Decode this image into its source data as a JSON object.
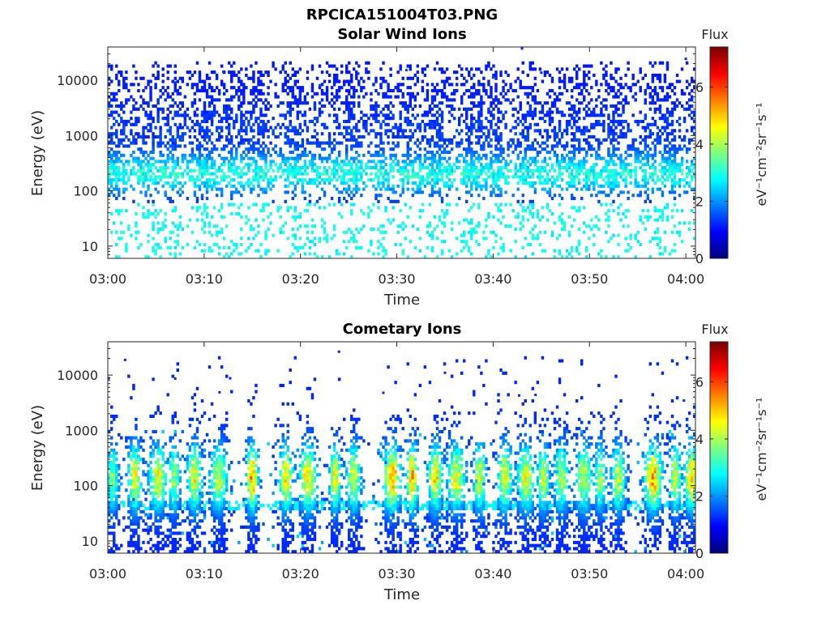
{
  "figure": {
    "title": "RPCICA151004T03.PNG"
  },
  "colorbar": {
    "title": "Flux",
    "label": "eV⁻¹cm⁻²sr⁻¹s⁻¹",
    "ticks": [
      "0",
      "2",
      "4",
      "6"
    ],
    "range": [
      0,
      7.4
    ],
    "colormap": "jet"
  },
  "chart_data": [
    {
      "type": "heatmap",
      "title": "Solar Wind Ions",
      "xlabel": "Time",
      "ylabel": "Energy (eV)",
      "xticks": [
        "03:00",
        "03:10",
        "03:20",
        "03:30",
        "03:40",
        "03:50",
        "04:00"
      ],
      "yticks": [
        "10",
        "100",
        "1000",
        "10000"
      ],
      "xlim": [
        "03:00",
        "04:01"
      ],
      "ylim": [
        6,
        40000
      ],
      "yscale": "log",
      "z_range": [
        0,
        7.4
      ],
      "band_energy_eV": [
        100,
        400
      ],
      "band_flux_peak": 3.0,
      "background_flux": 1.5,
      "sparse_events_eV": [
        [
          5,
          10500,
          1.1
        ],
        [
          7,
          9000,
          1.3
        ],
        [
          12,
          14000,
          1.2
        ],
        [
          22,
          8000,
          1.5
        ],
        [
          26,
          13000,
          1.2
        ],
        [
          31,
          15000,
          1.4
        ],
        [
          40,
          11000,
          1.3
        ],
        [
          45,
          13500,
          1.1
        ],
        [
          43,
          37000,
          1.2
        ],
        [
          60,
          24000,
          1.2
        ]
      ],
      "time_minutes_range": [
        0,
        61
      ]
    },
    {
      "type": "heatmap",
      "title": "Cometary Ions",
      "xlabel": "Time",
      "ylabel": "Energy (eV)",
      "xticks": [
        "03:00",
        "03:10",
        "03:20",
        "03:30",
        "03:40",
        "03:50",
        "04:00"
      ],
      "yticks": [
        "10",
        "100",
        "1000",
        "10000"
      ],
      "xlim": [
        "03:00",
        "04:01"
      ],
      "ylim": [
        6,
        40000
      ],
      "yscale": "log",
      "z_range": [
        0,
        7.4
      ],
      "burst_centers_min": [
        0.5,
        2.8,
        5.2,
        6.9,
        9.0,
        11.5,
        15.0,
        18.5,
        20.8,
        23.6,
        25.5,
        29.5,
        31.6,
        34.0,
        36.2,
        38.6,
        41.2,
        43.4,
        45.2,
        47.1,
        49.4,
        51.1,
        53.0,
        56.6,
        58.9,
        60.6
      ],
      "burst_peak_flux": [
        3.8,
        4.5,
        4.6,
        4.0,
        4.6,
        4.2,
        5.4,
        4.8,
        4.9,
        4.6,
        4.4,
        5.4,
        5.2,
        4.8,
        4.6,
        4.7,
        4.6,
        4.5,
        4.4,
        4.2,
        4.3,
        4.1,
        4.2,
        5.3,
        4.5,
        5.2
      ],
      "burst_energy_range_eV": [
        10,
        2500
      ],
      "peak_energy_eV": [
        100,
        200
      ],
      "sparse_events_eV": [
        [
          0.1,
          8600,
          1.2
        ],
        [
          1.8,
          18500,
          1.2
        ],
        [
          7.0,
          8500,
          1.2
        ],
        [
          12.7,
          8600,
          1.1
        ],
        [
          24.0,
          26000,
          1.2
        ],
        [
          28.6,
          4700,
          1.2
        ],
        [
          35.0,
          10800,
          1.2
        ],
        [
          11.6,
          4800,
          1.2
        ],
        [
          42.7,
          4200,
          1.2
        ],
        [
          44.4,
          4300,
          1.2
        ],
        [
          59.8,
          3400,
          1.2
        ]
      ],
      "time_minutes_range": [
        0,
        61
      ]
    }
  ]
}
